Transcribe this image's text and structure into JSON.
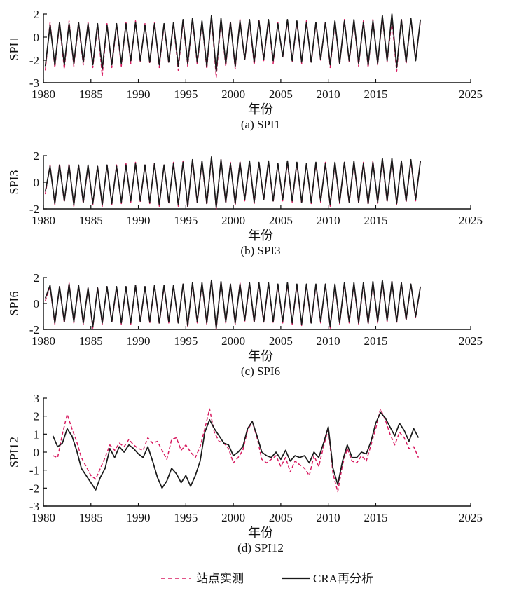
{
  "chart_data": [
    {
      "type": "line",
      "caption": "(a) SPI1",
      "xlabel": "年份",
      "ylabel": "SPI1",
      "xlim": [
        1980,
        2025
      ],
      "ylim": [
        -3,
        2
      ],
      "x_ticks": [
        "1980",
        "1985",
        "1990",
        "1995",
        "2000",
        "2005",
        "2010",
        "2015",
        "2025"
      ],
      "y_ticks": [
        "2",
        "0",
        "-2",
        "-3"
      ],
      "x": [
        1980.2,
        1980.7,
        1981.2,
        1981.7,
        1982.2,
        1982.7,
        1983.2,
        1983.7,
        1984.2,
        1984.7,
        1985.2,
        1985.7,
        1986.2,
        1986.7,
        1987.2,
        1987.7,
        1988.2,
        1988.7,
        1989.2,
        1989.7,
        1990.2,
        1990.7,
        1991.2,
        1991.7,
        1992.2,
        1992.7,
        1993.2,
        1993.7,
        1994.2,
        1994.7,
        1995.2,
        1995.7,
        1996.2,
        1996.7,
        1997.2,
        1997.7,
        1998.2,
        1998.7,
        1999.2,
        1999.7,
        2000.2,
        2000.7,
        2001.2,
        2001.7,
        2002.2,
        2002.7,
        2003.2,
        2003.7,
        2004.2,
        2004.7,
        2005.2,
        2005.7,
        2006.2,
        2006.7,
        2007.2,
        2007.7,
        2008.2,
        2008.7,
        2009.2,
        2009.7,
        2010.2,
        2010.7,
        2011.2,
        2011.7,
        2012.2,
        2012.7,
        2013.2,
        2013.7,
        2014.2,
        2014.7,
        2015.2,
        2015.7,
        2016.2,
        2016.7,
        2017.2,
        2017.7,
        2018.2,
        2018.7,
        2019.2,
        2019.7
      ],
      "series": [
        {
          "name": "站点实测",
          "values": [
            -2.1,
            1.4,
            -1.9,
            1.3,
            -2.0,
            1.5,
            -1.8,
            1.3,
            -1.7,
            1.4,
            -1.9,
            1.2,
            -2.5,
            1.3,
            -1.9,
            1.2,
            -1.8,
            1.4,
            -1.6,
            1.5,
            -1.5,
            1.3,
            -1.6,
            1.4,
            -1.9,
            1.2,
            -1.6,
            1.3,
            -2.1,
            1.5,
            -1.8,
            1.6,
            -1.7,
            1.4,
            -2.0,
            1.8,
            -2.6,
            1.6,
            -1.8,
            1.5,
            -2.0,
            1.6,
            -1.4,
            1.5,
            -1.7,
            1.6,
            -1.4,
            1.5,
            -1.6,
            1.4,
            -1.2,
            1.5,
            -1.5,
            1.4,
            -1.6,
            1.5,
            -1.6,
            1.3,
            -1.4,
            1.5,
            -1.9,
            1.4,
            -1.7,
            1.6,
            -1.5,
            1.5,
            -1.8,
            1.5,
            -1.9,
            1.6,
            -1.7,
            1.8,
            -1.5,
            1.6,
            -2.2,
            1.7,
            -1.6,
            1.6,
            -1.3,
            1.5
          ]
        },
        {
          "name": "CRA再分析",
          "values": [
            -1.8,
            1.2,
            -1.7,
            1.4,
            -1.7,
            1.3,
            -1.6,
            1.4,
            -1.5,
            1.3,
            -1.7,
            1.3,
            -2.0,
            1.2,
            -1.7,
            1.3,
            -1.6,
            1.3,
            -1.4,
            1.4,
            -1.4,
            1.2,
            -1.5,
            1.3,
            -1.7,
            1.3,
            -1.5,
            1.4,
            -1.8,
            1.6,
            -1.6,
            1.7,
            -1.5,
            1.5,
            -1.8,
            1.9,
            -2.2,
            1.7,
            -1.6,
            1.4,
            -1.8,
            1.5,
            -1.3,
            1.6,
            -1.5,
            1.5,
            -1.3,
            1.6,
            -1.4,
            1.3,
            -1.1,
            1.6,
            -1.4,
            1.5,
            -1.5,
            1.4,
            -1.5,
            1.4,
            -1.3,
            1.4,
            -1.7,
            1.5,
            -1.6,
            1.5,
            -1.4,
            1.6,
            -1.6,
            1.4,
            -1.7,
            1.5,
            -1.6,
            1.9,
            -1.4,
            2.0,
            -1.9,
            1.6,
            -1.5,
            1.7,
            -1.4,
            1.6
          ]
        }
      ]
    },
    {
      "type": "line",
      "caption": "(b) SPI3",
      "xlabel": "年份",
      "ylabel": "SPI3",
      "xlim": [
        1980,
        2025
      ],
      "ylim": [
        -2,
        2
      ],
      "x_ticks": [
        "1980",
        "1985",
        "1990",
        "1995",
        "2000",
        "2005",
        "2010",
        "2015",
        "2025"
      ],
      "y_ticks": [
        "2",
        "0",
        "-2"
      ],
      "x": [
        1980.2,
        1980.7,
        1981.2,
        1981.7,
        1982.2,
        1982.7,
        1983.2,
        1983.7,
        1984.2,
        1984.7,
        1985.2,
        1985.7,
        1986.2,
        1986.7,
        1987.2,
        1987.7,
        1988.2,
        1988.7,
        1989.2,
        1989.7,
        1990.2,
        1990.7,
        1991.2,
        1991.7,
        1992.2,
        1992.7,
        1993.2,
        1993.7,
        1994.2,
        1994.7,
        1995.2,
        1995.7,
        1996.2,
        1996.7,
        1997.2,
        1997.7,
        1998.2,
        1998.7,
        1999.2,
        1999.7,
        2000.2,
        2000.7,
        2001.2,
        2001.7,
        2002.2,
        2002.7,
        2003.2,
        2003.7,
        2004.2,
        2004.7,
        2005.2,
        2005.7,
        2006.2,
        2006.7,
        2007.2,
        2007.7,
        2008.2,
        2008.7,
        2009.2,
        2009.7,
        2010.2,
        2010.7,
        2011.2,
        2011.7,
        2012.2,
        2012.7,
        2013.2,
        2013.7,
        2014.2,
        2014.7,
        2015.2,
        2015.7,
        2016.2,
        2016.7,
        2017.2,
        2017.7,
        2018.2,
        2018.7,
        2019.2,
        2019.7
      ],
      "series": [
        {
          "name": "站点实测",
          "values": [
            -0.9,
            1.3,
            -1.7,
            1.4,
            -1.5,
            1.4,
            -1.8,
            1.3,
            -1.6,
            1.2,
            -1.7,
            1.2,
            -1.8,
            1.3,
            -1.7,
            1.3,
            -1.6,
            1.4,
            -1.5,
            1.5,
            -1.5,
            1.3,
            -1.6,
            1.5,
            -1.8,
            1.3,
            -1.6,
            1.5,
            -1.8,
            1.6,
            -1.9,
            1.6,
            -1.6,
            1.5,
            -1.7,
            1.8,
            -2.0,
            1.7,
            -1.6,
            1.5,
            -1.7,
            1.6,
            -1.4,
            1.5,
            -1.6,
            1.5,
            -1.4,
            1.5,
            -1.5,
            1.4,
            -1.4,
            1.5,
            -1.5,
            1.4,
            -1.6,
            1.4,
            -1.6,
            1.4,
            -1.5,
            1.5,
            -1.8,
            1.4,
            -1.6,
            1.5,
            -1.6,
            1.5,
            -1.6,
            1.5,
            -1.7,
            1.6,
            -1.6,
            1.7,
            -1.5,
            1.7,
            -1.7,
            1.6,
            -1.5,
            1.6,
            -1.4,
            1.6
          ]
        },
        {
          "name": "CRA再分析",
          "values": [
            -0.7,
            1.2,
            -1.6,
            1.3,
            -1.4,
            1.3,
            -1.7,
            1.3,
            -1.5,
            1.3,
            -1.6,
            1.2,
            -1.7,
            1.3,
            -1.6,
            1.2,
            -1.5,
            1.3,
            -1.4,
            1.4,
            -1.4,
            1.3,
            -1.5,
            1.4,
            -1.7,
            1.3,
            -1.5,
            1.4,
            -1.7,
            1.5,
            -1.8,
            1.7,
            -1.5,
            1.6,
            -1.6,
            1.9,
            -1.9,
            1.7,
            -1.5,
            1.4,
            -1.6,
            1.5,
            -1.3,
            1.6,
            -1.5,
            1.5,
            -1.3,
            1.6,
            -1.4,
            1.4,
            -1.3,
            1.6,
            -1.4,
            1.5,
            -1.5,
            1.4,
            -1.5,
            1.5,
            -1.4,
            1.4,
            -1.7,
            1.5,
            -1.5,
            1.5,
            -1.5,
            1.6,
            -1.5,
            1.4,
            -1.6,
            1.5,
            -1.5,
            1.8,
            -1.4,
            1.8,
            -1.6,
            1.6,
            -1.4,
            1.7,
            -1.3,
            1.6
          ]
        }
      ]
    },
    {
      "type": "line",
      "caption": "(c) SPI6",
      "xlabel": "年份",
      "ylabel": "SPI6",
      "xlim": [
        1980,
        2025
      ],
      "ylim": [
        -2,
        2
      ],
      "x_ticks": [
        "1980",
        "1985",
        "1990",
        "1995",
        "2000",
        "2005",
        "2010",
        "2015",
        "2025"
      ],
      "y_ticks": [
        "2",
        "0",
        "-2"
      ],
      "x": [
        1980.2,
        1980.7,
        1981.2,
        1981.7,
        1982.2,
        1982.7,
        1983.2,
        1983.7,
        1984.2,
        1984.7,
        1985.2,
        1985.7,
        1986.2,
        1986.7,
        1987.2,
        1987.7,
        1988.2,
        1988.7,
        1989.2,
        1989.7,
        1990.2,
        1990.7,
        1991.2,
        1991.7,
        1992.2,
        1992.7,
        1993.2,
        1993.7,
        1994.2,
        1994.7,
        1995.2,
        1995.7,
        1996.2,
        1996.7,
        1997.2,
        1997.7,
        1998.2,
        1998.7,
        1999.2,
        1999.7,
        2000.2,
        2000.7,
        2001.2,
        2001.7,
        2002.2,
        2002.7,
        2003.2,
        2003.7,
        2004.2,
        2004.7,
        2005.2,
        2005.7,
        2006.2,
        2006.7,
        2007.2,
        2007.7,
        2008.2,
        2008.7,
        2009.2,
        2009.7,
        2010.2,
        2010.7,
        2011.2,
        2011.7,
        2012.2,
        2012.7,
        2013.2,
        2013.7,
        2014.2,
        2014.7,
        2015.2,
        2015.7,
        2016.2,
        2016.7,
        2017.2,
        2017.7,
        2018.2,
        2018.7,
        2019.2,
        2019.7
      ],
      "series": [
        {
          "name": "站点实测",
          "values": [
            0.2,
            1.3,
            -1.6,
            1.3,
            -1.5,
            1.6,
            -1.5,
            1.3,
            -1.6,
            1.2,
            -1.9,
            1.3,
            -1.6,
            1.3,
            -1.5,
            1.2,
            -1.6,
            1.3,
            -1.6,
            1.4,
            -1.5,
            1.3,
            -1.5,
            1.4,
            -1.6,
            1.3,
            -1.5,
            1.4,
            -1.6,
            1.5,
            -1.8,
            1.5,
            -1.5,
            1.5,
            -1.6,
            1.8,
            -2.0,
            1.7,
            -1.5,
            1.5,
            -1.6,
            1.6,
            -1.4,
            1.5,
            -1.5,
            1.5,
            -1.5,
            1.5,
            -1.5,
            1.4,
            -1.5,
            1.5,
            -1.6,
            1.4,
            -1.7,
            1.4,
            -1.6,
            1.4,
            -1.5,
            1.5,
            -1.9,
            1.4,
            -1.6,
            1.5,
            -1.5,
            1.5,
            -1.6,
            1.5,
            -1.6,
            1.6,
            -1.5,
            1.7,
            -1.4,
            1.7,
            -1.5,
            1.6,
            -1.3,
            1.5,
            -1.1,
            1.3
          ]
        },
        {
          "name": "CRA再分析",
          "values": [
            0.4,
            1.4,
            -1.5,
            1.3,
            -1.4,
            1.5,
            -1.4,
            1.4,
            -1.5,
            1.2,
            -1.8,
            1.2,
            -1.5,
            1.3,
            -1.4,
            1.3,
            -1.5,
            1.3,
            -1.5,
            1.4,
            -1.4,
            1.3,
            -1.4,
            1.4,
            -1.5,
            1.4,
            -1.4,
            1.4,
            -1.5,
            1.5,
            -1.7,
            1.6,
            -1.4,
            1.6,
            -1.5,
            1.8,
            -1.9,
            1.7,
            -1.4,
            1.5,
            -1.5,
            1.5,
            -1.3,
            1.6,
            -1.4,
            1.6,
            -1.4,
            1.6,
            -1.4,
            1.5,
            -1.4,
            1.6,
            -1.5,
            1.5,
            -1.6,
            1.5,
            -1.5,
            1.5,
            -1.4,
            1.5,
            -1.8,
            1.5,
            -1.5,
            1.6,
            -1.4,
            1.6,
            -1.5,
            1.6,
            -1.5,
            1.7,
            -1.4,
            1.8,
            -1.3,
            1.7,
            -1.4,
            1.6,
            -1.2,
            1.5,
            -1.0,
            1.3
          ]
        }
      ]
    },
    {
      "type": "line",
      "caption": "(d) SPI12",
      "xlabel": "年份",
      "ylabel": "SPI12",
      "xlim": [
        1980,
        2025
      ],
      "ylim": [
        -3,
        3
      ],
      "x_ticks": [
        "1980",
        "1985",
        "1990",
        "1995",
        "2000",
        "2005",
        "2010",
        "2015",
        "2025"
      ],
      "y_ticks": [
        "3",
        "2",
        "1",
        "0",
        "-1",
        "-2",
        "-3"
      ],
      "x": [
        1981.0,
        1981.5,
        1982.0,
        1982.5,
        1983.0,
        1983.5,
        1984.0,
        1984.5,
        1985.0,
        1985.5,
        1986.0,
        1986.5,
        1987.0,
        1987.5,
        1988.0,
        1988.5,
        1989.0,
        1989.5,
        1990.0,
        1990.5,
        1991.0,
        1991.5,
        1992.0,
        1992.5,
        1993.0,
        1993.5,
        1994.0,
        1994.5,
        1995.0,
        1995.5,
        1996.0,
        1996.5,
        1997.0,
        1997.5,
        1998.0,
        1998.5,
        1999.0,
        1999.5,
        2000.0,
        2000.5,
        2001.0,
        2001.5,
        2002.0,
        2002.5,
        2003.0,
        2003.5,
        2004.0,
        2004.5,
        2005.0,
        2005.5,
        2006.0,
        2006.5,
        2007.0,
        2007.5,
        2008.0,
        2008.5,
        2009.0,
        2009.5,
        2010.0,
        2010.5,
        2011.0,
        2011.5,
        2012.0,
        2012.5,
        2013.0,
        2013.5,
        2014.0,
        2014.5,
        2015.0,
        2015.5,
        2016.0,
        2016.5,
        2017.0,
        2017.5,
        2018.0,
        2018.5,
        2019.0,
        2019.5
      ],
      "series": [
        {
          "name": "站点实测",
          "values": [
            -0.2,
            -0.3,
            1.0,
            2.1,
            1.3,
            0.6,
            -0.3,
            -0.8,
            -1.3,
            -1.5,
            -0.9,
            -0.3,
            0.4,
            0.1,
            0.5,
            0.3,
            0.7,
            0.4,
            0.2,
            0.1,
            0.8,
            0.5,
            0.6,
            0.1,
            -0.4,
            0.7,
            0.8,
            0.1,
            0.4,
            0.0,
            -0.3,
            0.3,
            1.3,
            2.4,
            1.1,
            0.6,
            0.5,
            0.2,
            -0.6,
            -0.3,
            0.1,
            1.2,
            1.7,
            0.8,
            -0.4,
            -0.6,
            -0.4,
            -0.2,
            -0.8,
            -0.3,
            -1.1,
            -0.5,
            -0.7,
            -0.9,
            -1.3,
            -0.2,
            -0.8,
            0.3,
            1.3,
            -1.2,
            -2.2,
            -0.7,
            0.2,
            -0.5,
            -0.6,
            -0.2,
            -0.5,
            0.4,
            1.3,
            2.4,
            1.8,
            1.0,
            0.4,
            1.1,
            0.8,
            0.2,
            0.3,
            -0.3
          ]
        },
        {
          "name": "CRA再分析",
          "values": [
            0.9,
            0.3,
            0.5,
            1.3,
            0.9,
            0.1,
            -0.9,
            -1.3,
            -1.7,
            -2.1,
            -1.4,
            -0.9,
            0.2,
            -0.3,
            0.3,
            0.0,
            0.4,
            0.2,
            -0.1,
            -0.3,
            0.3,
            -0.5,
            -1.4,
            -2.0,
            -1.6,
            -0.9,
            -1.2,
            -1.7,
            -1.3,
            -1.9,
            -1.3,
            -0.5,
            1.1,
            1.8,
            1.3,
            0.9,
            0.5,
            0.4,
            -0.2,
            0.0,
            0.3,
            1.3,
            1.7,
            0.9,
            0.0,
            -0.2,
            -0.3,
            0.0,
            -0.4,
            0.1,
            -0.5,
            -0.2,
            -0.3,
            -0.2,
            -0.6,
            0.0,
            -0.3,
            0.5,
            1.4,
            -0.9,
            -1.8,
            -0.5,
            0.4,
            -0.3,
            -0.3,
            0.0,
            -0.1,
            0.6,
            1.6,
            2.2,
            1.9,
            1.4,
            0.9,
            1.6,
            1.2,
            0.6,
            1.3,
            0.8
          ]
        }
      ]
    }
  ],
  "legend": {
    "placement": "bottom",
    "items": [
      {
        "label": "站点实测",
        "color": "#d81b60",
        "style": "dashed"
      },
      {
        "label": "CRA再分析",
        "color": "#1a1a1a",
        "style": "solid"
      }
    ]
  },
  "colors": {
    "station": "#d81b60",
    "reanalysis": "#1a1a1a",
    "axis": "#111111"
  }
}
